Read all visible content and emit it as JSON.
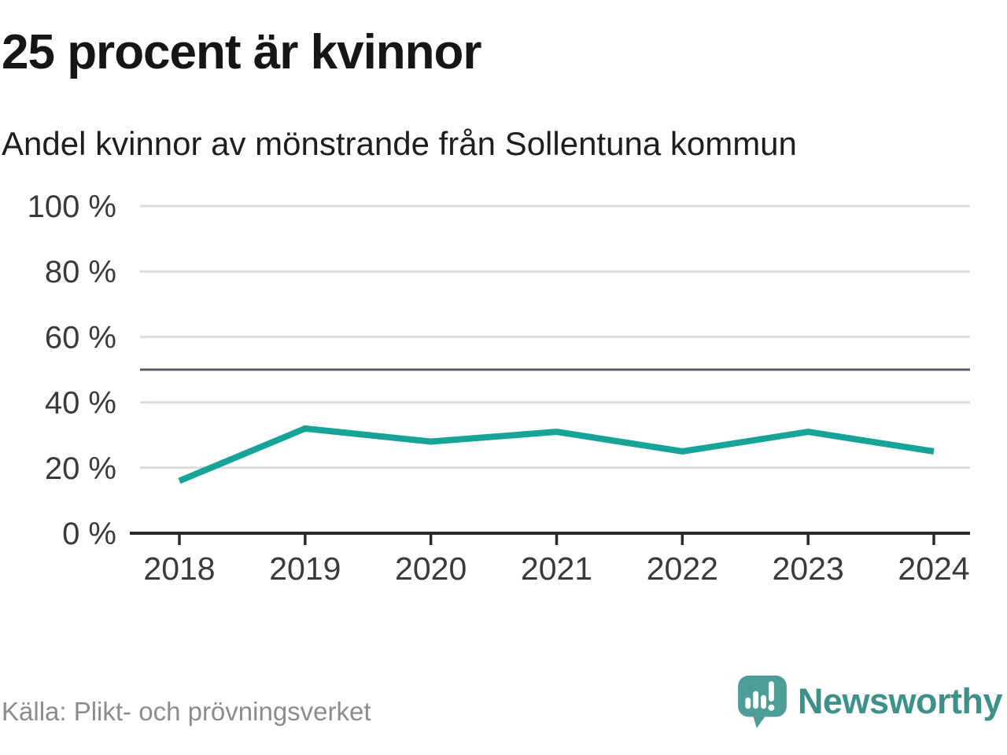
{
  "header": {
    "title": "25 procent är kvinnor",
    "subtitle": "Andel kvinnor av mönstrande från Sollentuna kommun"
  },
  "footer": {
    "source": "Källa: Plikt- och prövningsverket",
    "brand": "Newsworthy",
    "logo_icon": "newsworthy-speech-bubble-bar-chart-icon"
  },
  "colors": {
    "line": "#16a398",
    "grid": "#dcdcdc",
    "reference_line": "#5b5e66",
    "axis": "#2b2b2b",
    "tick_label": "#3a3a3a",
    "title_text": "#161616",
    "source_text": "#8c8c8c",
    "brand": "#4d9e99",
    "brand_text": "#3e918b"
  },
  "chart_data": {
    "type": "line",
    "title": "25 procent är kvinnor",
    "subtitle": "Andel kvinnor av mönstrande från Sollentuna kommun",
    "x": [
      "2018",
      "2019",
      "2020",
      "2021",
      "2022",
      "2023",
      "2024"
    ],
    "series": [
      {
        "name": "Andel kvinnor av mönstrande",
        "values": [
          16,
          32,
          28,
          31,
          25,
          31,
          25
        ]
      }
    ],
    "ylabel": "",
    "xlabel": "",
    "ylim": [
      0,
      100
    ],
    "y_ticks": [
      0,
      20,
      40,
      60,
      80,
      100
    ],
    "y_tick_suffix": " %",
    "reference_line": 50,
    "grid": true,
    "legend": "none"
  }
}
